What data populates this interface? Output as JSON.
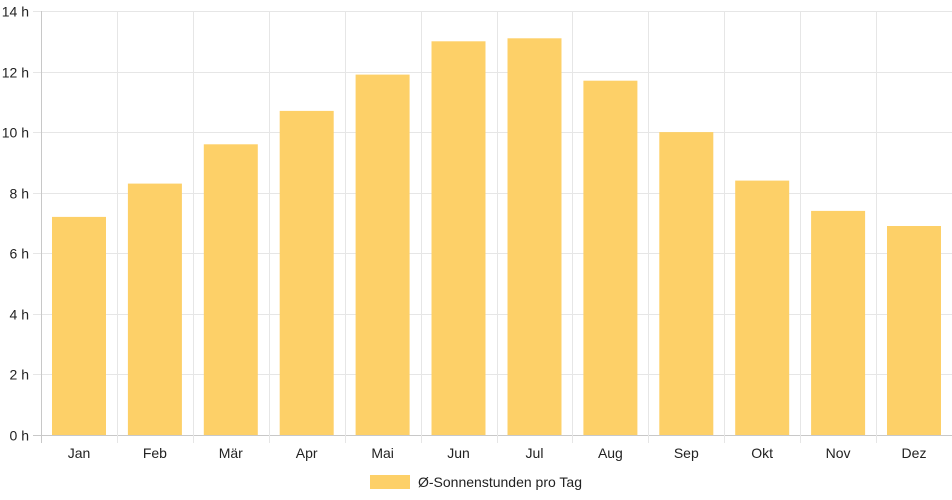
{
  "chart_data": {
    "type": "bar",
    "categories": [
      "Jan",
      "Feb",
      "Mär",
      "Apr",
      "Mai",
      "Jun",
      "Jul",
      "Aug",
      "Sep",
      "Okt",
      "Nov",
      "Dez"
    ],
    "series": [
      {
        "name": "Ø-Sonnenstunden pro Tag",
        "values": [
          7.2,
          8.3,
          9.6,
          10.7,
          11.9,
          13.0,
          13.1,
          11.7,
          10.0,
          8.4,
          7.4,
          6.9
        ],
        "color": "#fdd068"
      }
    ],
    "y_ticks": [
      "0 h",
      "2 h",
      "4 h",
      "6 h",
      "8 h",
      "10 h",
      "12 h",
      "14 h"
    ],
    "ylim": [
      0,
      14
    ],
    "grid": true,
    "legend": "bottom-center"
  }
}
